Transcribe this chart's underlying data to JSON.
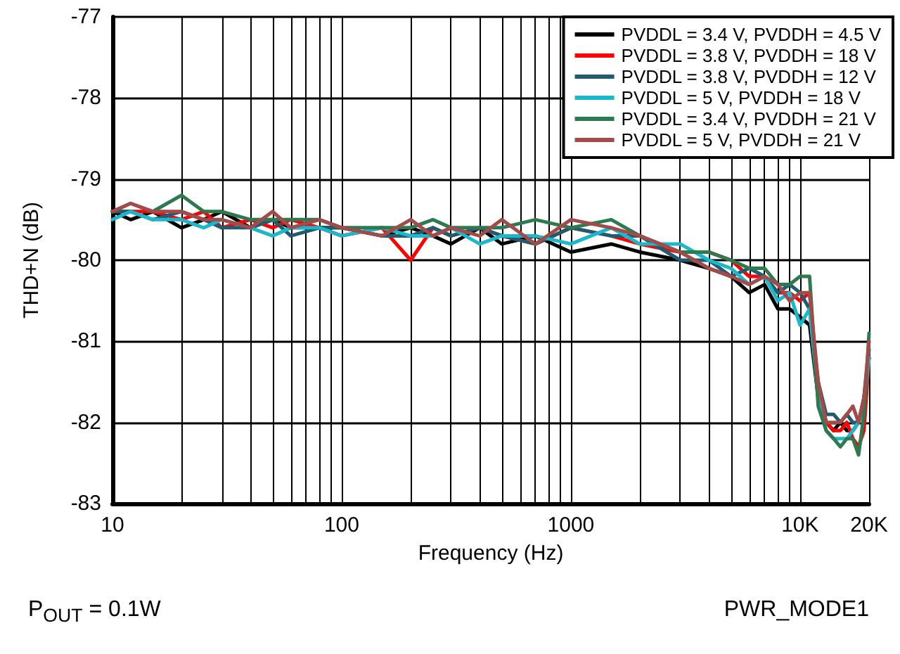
{
  "chart_data": {
    "type": "line",
    "xlabel": "Frequency (Hz)",
    "ylabel": "THD+N (dB)",
    "log": "x",
    "grid": true,
    "legend": "top right",
    "line_style": "solid",
    "marker": "none",
    "x": [
      10,
      12,
      15,
      20,
      25,
      30,
      40,
      50,
      60,
      80,
      100,
      150,
      200,
      250,
      300,
      400,
      500,
      700,
      1000,
      1500,
      2000,
      3000,
      4000,
      5000,
      6000,
      7000,
      8000,
      9000,
      10000,
      11000,
      12000,
      13000,
      14000,
      15000,
      16000,
      17000,
      18000,
      19000,
      20000
    ],
    "xlim": [
      10,
      20000
    ],
    "xticks": [
      10,
      {
        "value": 20,
        "label": null
      },
      {
        "value": 30,
        "label": null
      },
      {
        "value": 40,
        "label": null
      },
      {
        "value": 50,
        "label": null
      },
      {
        "value": 60,
        "label": null
      },
      {
        "value": 70,
        "label": null
      },
      {
        "value": 80,
        "label": null
      },
      {
        "value": 90,
        "label": null
      },
      100,
      {
        "value": 200,
        "label": null
      },
      {
        "value": 300,
        "label": null
      },
      {
        "value": 400,
        "label": null
      },
      {
        "value": 500,
        "label": null
      },
      {
        "value": 600,
        "label": null
      },
      {
        "value": 700,
        "label": null
      },
      {
        "value": 800,
        "label": null
      },
      {
        "value": 900,
        "label": null
      },
      1000,
      {
        "value": 2000,
        "label": null
      },
      {
        "value": 3000,
        "label": null
      },
      {
        "value": 4000,
        "label": null
      },
      {
        "value": 5000,
        "label": null
      },
      {
        "value": 6000,
        "label": null
      },
      {
        "value": 7000,
        "label": null
      },
      {
        "value": 8000,
        "label": null
      },
      {
        "value": 9000,
        "label": null
      },
      {
        "value": 10000,
        "label": "10K"
      },
      {
        "value": 20000,
        "label": "20K"
      }
    ],
    "ylim": [
      -83,
      -77
    ],
    "yticks": [
      -83,
      -82,
      -81,
      -80,
      -79,
      -78,
      -77
    ],
    "series": [
      {
        "name": "PVDDL = 3.4 V, PVDDH = 4.5 V",
        "color": "#000000",
        "values": [
          -79.4,
          -79.5,
          -79.4,
          -79.6,
          -79.5,
          -79.4,
          -79.6,
          -79.5,
          -79.6,
          -79.6,
          -79.6,
          -79.7,
          -79.6,
          -79.7,
          -79.8,
          -79.6,
          -79.8,
          -79.7,
          -79.9,
          -79.8,
          -79.9,
          -80.0,
          -80.1,
          -80.2,
          -80.4,
          -80.3,
          -80.6,
          -80.6,
          -80.7,
          -80.8,
          -81.7,
          -82.0,
          -82.1,
          -82.0,
          -82.1,
          -82.1,
          -82.0,
          -81.7,
          -81.2
        ]
      },
      {
        "name": "PVDDL = 3.8 V, PVDDH = 18 V",
        "color": "#ff0000",
        "values": [
          -79.4,
          -79.4,
          -79.4,
          -79.5,
          -79.4,
          -79.6,
          -79.5,
          -79.6,
          -79.5,
          -79.6,
          -79.7,
          -79.6,
          -80.0,
          -79.6,
          -79.7,
          -79.6,
          -79.7,
          -79.8,
          -79.6,
          -79.7,
          -79.8,
          -79.9,
          -79.9,
          -80.0,
          -80.2,
          -80.2,
          -80.4,
          -80.4,
          -80.5,
          -80.4,
          -81.6,
          -82.0,
          -82.1,
          -82.1,
          -82.0,
          -82.2,
          -82.3,
          -82.1,
          -81.2
        ]
      },
      {
        "name": "PVDDL = 3.8 V, PVDDH = 12 V",
        "color": "#1f5c70",
        "values": [
          -79.4,
          -79.4,
          -79.5,
          -79.4,
          -79.5,
          -79.6,
          -79.6,
          -79.5,
          -79.7,
          -79.6,
          -79.6,
          -79.7,
          -79.7,
          -79.6,
          -79.7,
          -79.6,
          -79.7,
          -79.8,
          -79.6,
          -79.7,
          -79.7,
          -80.0,
          -80.0,
          -80.2,
          -80.1,
          -80.2,
          -80.4,
          -80.3,
          -80.4,
          -80.6,
          -81.5,
          -81.9,
          -81.9,
          -82.0,
          -81.9,
          -82.0,
          -82.0,
          -81.7,
          -81.1
        ]
      },
      {
        "name": "PVDDL = 5 V, PVDDH = 18 V",
        "color": "#1bb8cc",
        "values": [
          -79.5,
          -79.4,
          -79.5,
          -79.5,
          -79.6,
          -79.5,
          -79.6,
          -79.7,
          -79.6,
          -79.6,
          -79.7,
          -79.6,
          -79.7,
          -79.7,
          -79.6,
          -79.8,
          -79.7,
          -79.7,
          -79.8,
          -79.6,
          -79.8,
          -79.8,
          -80.0,
          -80.1,
          -80.3,
          -80.2,
          -80.5,
          -80.4,
          -80.8,
          -80.6,
          -81.7,
          -82.1,
          -82.2,
          -82.2,
          -82.2,
          -82.1,
          -82.0,
          -81.8,
          -81.2
        ]
      },
      {
        "name": "PVDDL = 3.4 V, PVDDH = 21 V",
        "color": "#2e7a50",
        "values": [
          -79.4,
          -79.3,
          -79.4,
          -79.2,
          -79.4,
          -79.4,
          -79.5,
          -79.5,
          -79.5,
          -79.5,
          -79.6,
          -79.6,
          -79.6,
          -79.5,
          -79.6,
          -79.6,
          -79.6,
          -79.5,
          -79.6,
          -79.5,
          -79.7,
          -79.9,
          -79.9,
          -80.0,
          -80.1,
          -80.1,
          -80.3,
          -80.3,
          -80.2,
          -80.2,
          -81.8,
          -82.1,
          -82.2,
          -82.3,
          -82.2,
          -82.2,
          -82.4,
          -81.9,
          -80.9
        ]
      },
      {
        "name": "PVDDL = 5 V, PVDDH = 21 V",
        "color": "#a34a4a",
        "values": [
          -79.4,
          -79.3,
          -79.4,
          -79.4,
          -79.5,
          -79.5,
          -79.6,
          -79.4,
          -79.6,
          -79.5,
          -79.6,
          -79.7,
          -79.5,
          -79.7,
          -79.6,
          -79.7,
          -79.5,
          -79.8,
          -79.5,
          -79.6,
          -79.7,
          -79.9,
          -80.1,
          -80.2,
          -80.3,
          -80.2,
          -80.3,
          -80.5,
          -80.4,
          -80.4,
          -81.5,
          -82.0,
          -82.0,
          -82.0,
          -81.9,
          -81.8,
          -82.0,
          -81.7,
          -81.0
        ]
      }
    ],
    "annotations": [
      "P$_{OUT}$ = 0.1W",
      "PWR_MODE1"
    ]
  }
}
